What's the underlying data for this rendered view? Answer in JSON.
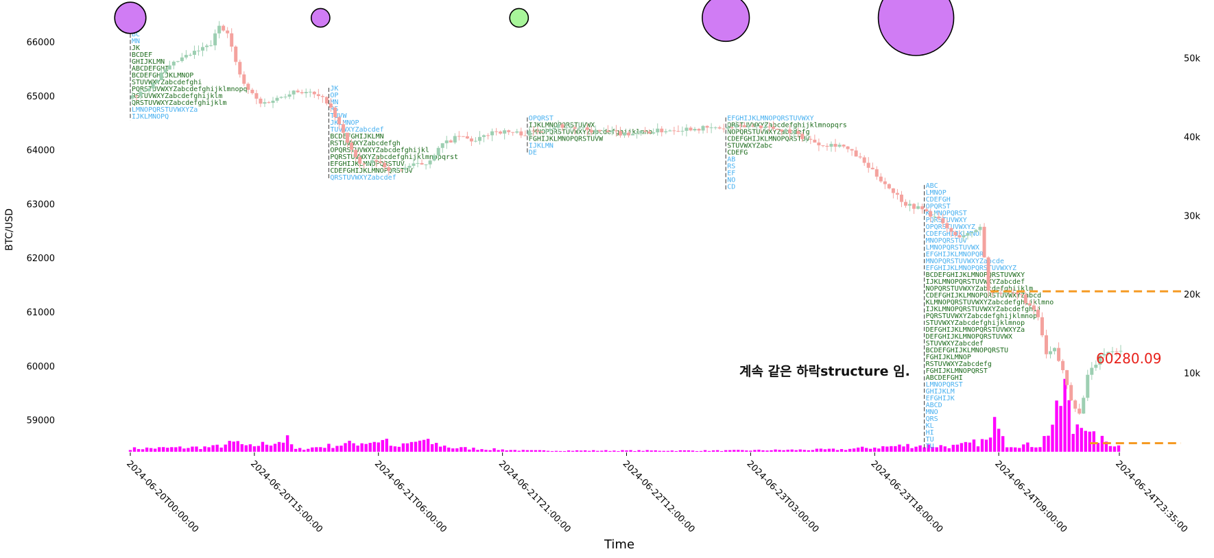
{
  "chart_data": {
    "type": "candlestick",
    "ylabel": "BTC/USD",
    "xlabel": "Time",
    "ylim": [
      58450,
      66400
    ],
    "y_ticks": [
      59000,
      60000,
      61000,
      62000,
      63000,
      64000,
      65000,
      66000
    ],
    "volume_axis_ticks": [
      "10k",
      "20k",
      "30k",
      "40k",
      "50k"
    ],
    "volume_ylim": [
      0,
      55000
    ],
    "x_range": [
      "2024-06-20T00:00:00",
      "2024-06-24T23:35:00"
    ],
    "x_ticks": [
      "2024-06-20T00:00:00",
      "2024-06-20T15:00:00",
      "2024-06-21T06:00:00",
      "2024-06-21T21:00:00",
      "2024-06-22T12:00:00",
      "2024-06-23T03:00:00",
      "2024-06-23T18:00:00",
      "2024-06-24T09:00:00",
      "2024-06-24T23:35:00"
    ],
    "annotation": "계속 같은 하락structure 임.",
    "last_price": "60280.09",
    "candle_colors": {
      "up": "#9dcfb2",
      "down": "#f4a29e"
    },
    "volume_color": "#ff00ff",
    "level_line_color": "#f59a23",
    "profile_colors": {
      "single": "#47b0f0",
      "value_area": "#1c6b1c"
    },
    "horizontal_levels": [
      {
        "price": 61380,
        "from": "2024-06-24T08:00:00"
      },
      {
        "price": 58570,
        "from": "2024-06-24T20:00:00"
      }
    ],
    "bubbles": [
      {
        "time": "2024-06-20T00:00:00",
        "size": 6,
        "color": "#d07cf4"
      },
      {
        "time": "2024-06-20T23:00:00",
        "size": 2,
        "color": "#d07cf4"
      },
      {
        "time": "2024-06-21T23:00:00",
        "size": 2,
        "color": "#a8f59a"
      },
      {
        "time": "2024-06-23T00:00:00",
        "size": 11,
        "color": "#d07cf4"
      },
      {
        "time": "2024-06-23T23:00:00",
        "size": 20,
        "color": "#d07cf4"
      }
    ],
    "profiles": [
      {
        "start": "2024-06-20T00:00:00",
        "high": 66150,
        "low": 64550,
        "poc": 65100,
        "va_high": 65950,
        "va_low": 64850
      },
      {
        "start": "2024-06-21T00:00:00",
        "high": 65150,
        "low": 63450,
        "poc": 63900,
        "va_high": 64350,
        "va_low": 63600
      },
      {
        "start": "2024-06-22T00:00:00",
        "high": 64600,
        "low": 63950,
        "poc": 64350,
        "va_high": 64500,
        "va_low": 64200
      },
      {
        "start": "2024-06-23T00:00:00",
        "high": 64600,
        "low": 63250,
        "poc": 64450,
        "va_high": 64550,
        "va_low": 63950
      },
      {
        "start": "2024-06-24T00:00:00",
        "high": 63350,
        "low": 58450,
        "poc": 61200,
        "va_high": 61800,
        "va_low": 59700
      }
    ],
    "candle_keypoints": [
      [
        "2024-06-20T00:00:00",
        64950
      ],
      [
        "2024-06-20T02:00:00",
        65100
      ],
      [
        "2024-06-20T04:00:00",
        65400
      ],
      [
        "2024-06-20T06:00:00",
        65650
      ],
      [
        "2024-06-20T08:00:00",
        65800
      ],
      [
        "2024-06-20T10:00:00",
        65950
      ],
      [
        "2024-06-20T11:00:00",
        66300
      ],
      [
        "2024-06-20T12:00:00",
        66200
      ],
      [
        "2024-06-20T13:00:00",
        65600
      ],
      [
        "2024-06-20T14:00:00",
        65200
      ],
      [
        "2024-06-20T16:00:00",
        64850
      ],
      [
        "2024-06-20T18:00:00",
        64950
      ],
      [
        "2024-06-20T20:00:00",
        65100
      ],
      [
        "2024-06-20T22:00:00",
        65050
      ],
      [
        "2024-06-21T00:00:00",
        64900
      ],
      [
        "2024-06-21T02:00:00",
        64300
      ],
      [
        "2024-06-21T04:00:00",
        63700
      ],
      [
        "2024-06-21T06:00:00",
        63800
      ],
      [
        "2024-06-21T08:00:00",
        63600
      ],
      [
        "2024-06-21T10:00:00",
        63700
      ],
      [
        "2024-06-21T12:00:00",
        63750
      ],
      [
        "2024-06-21T14:00:00",
        64100
      ],
      [
        "2024-06-21T16:00:00",
        64250
      ],
      [
        "2024-06-21T18:00:00",
        64150
      ],
      [
        "2024-06-21T20:00:00",
        64350
      ],
      [
        "2024-06-22T00:00:00",
        64300
      ],
      [
        "2024-06-22T04:00:00",
        64450
      ],
      [
        "2024-06-22T08:00:00",
        64350
      ],
      [
        "2024-06-22T12:00:00",
        64300
      ],
      [
        "2024-06-22T16:00:00",
        64350
      ],
      [
        "2024-06-22T20:00:00",
        64400
      ],
      [
        "2024-06-23T00:00:00",
        64400
      ],
      [
        "2024-06-23T04:00:00",
        64450
      ],
      [
        "2024-06-23T08:00:00",
        64350
      ],
      [
        "2024-06-23T10:00:00",
        64200
      ],
      [
        "2024-06-23T12:00:00",
        64100
      ],
      [
        "2024-06-23T14:00:00",
        64100
      ],
      [
        "2024-06-23T16:00:00",
        63900
      ],
      [
        "2024-06-23T18:00:00",
        63600
      ],
      [
        "2024-06-23T20:00:00",
        63300
      ],
      [
        "2024-06-23T22:00:00",
        63000
      ],
      [
        "2024-06-24T00:00:00",
        62900
      ],
      [
        "2024-06-24T02:00:00",
        62700
      ],
      [
        "2024-06-24T04:00:00",
        62400
      ],
      [
        "2024-06-24T06:00:00",
        62450
      ],
      [
        "2024-06-24T07:00:00",
        62600
      ],
      [
        "2024-06-24T08:00:00",
        61400
      ],
      [
        "2024-06-24T10:00:00",
        61350
      ],
      [
        "2024-06-24T12:00:00",
        61300
      ],
      [
        "2024-06-24T14:00:00",
        60900
      ],
      [
        "2024-06-24T15:00:00",
        60200
      ],
      [
        "2024-06-24T16:00:00",
        60300
      ],
      [
        "2024-06-24T17:00:00",
        59900
      ],
      [
        "2024-06-24T18:00:00",
        59400
      ],
      [
        "2024-06-24T19:00:00",
        59100
      ],
      [
        "2024-06-24T20:00:00",
        59800
      ],
      [
        "2024-06-24T21:00:00",
        60050
      ],
      [
        "2024-06-24T22:00:00",
        60250
      ],
      [
        "2024-06-24T23:35:00",
        60280
      ]
    ],
    "volume_keypoints": [
      [
        "2024-06-20T00:00:00",
        400
      ],
      [
        "2024-06-20T10:00:00",
        600
      ],
      [
        "2024-06-20T13:00:00",
        1200
      ],
      [
        "2024-06-20T14:00:00",
        600
      ],
      [
        "2024-06-20T19:00:00",
        1500
      ],
      [
        "2024-06-20T20:00:00",
        300
      ],
      [
        "2024-06-21T07:00:00",
        1500
      ],
      [
        "2024-06-21T08:00:00",
        500
      ],
      [
        "2024-06-21T11:00:00",
        1400
      ],
      [
        "2024-06-21T15:00:00",
        500
      ],
      [
        "2024-06-22T00:00:00",
        150
      ],
      [
        "2024-06-23T00:00:00",
        150
      ],
      [
        "2024-06-23T14:00:00",
        300
      ],
      [
        "2024-06-23T22:00:00",
        800
      ],
      [
        "2024-06-24T04:00:00",
        700
      ],
      [
        "2024-06-24T08:00:00",
        1500
      ],
      [
        "2024-06-24T09:00:00",
        5000
      ],
      [
        "2024-06-24T10:00:00",
        900
      ],
      [
        "2024-06-24T14:00:00",
        800
      ],
      [
        "2024-06-24T16:00:00",
        4500
      ],
      [
        "2024-06-24T17:00:00",
        8000
      ],
      [
        "2024-06-24T18:00:00",
        2500
      ],
      [
        "2024-06-24T19:00:00",
        5000
      ],
      [
        "2024-06-24T20:00:00",
        2000
      ],
      [
        "2024-06-24T23:35:00",
        700
      ]
    ]
  }
}
